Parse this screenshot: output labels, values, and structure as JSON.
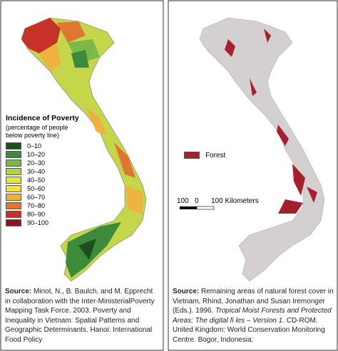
{
  "left_panel": {
    "legend": {
      "title": "Incidence of Poverty",
      "subtitle": "(percentage of people below poverty line)",
      "items": [
        {
          "label": "0–10",
          "color": "#1e4d1e"
        },
        {
          "label": "10–20",
          "color": "#3d8a3a"
        },
        {
          "label": "20–30",
          "color": "#7bb84b"
        },
        {
          "label": "30–40",
          "color": "#b3d14a"
        },
        {
          "label": "40–50",
          "color": "#dfe64b"
        },
        {
          "label": "50–60",
          "color": "#f4e14a"
        },
        {
          "label": "60–70",
          "color": "#efb23c"
        },
        {
          "label": "70–80",
          "color": "#df7631"
        },
        {
          "label": "80–90",
          "color": "#c73228"
        },
        {
          "label": "90–100",
          "color": "#8a1420"
        }
      ]
    },
    "source": {
      "label": "Source:",
      "text": "Minot, N., B. Baulch, and M. Epprecht in collaboration with the Inter-MinisterialPoverty Mapping Task Force. 2003. Poverty and Inequality in Vietnam: Spatial Patterns and Geographic Determinants. Hanoi: International Food Policy"
    }
  },
  "right_panel": {
    "legend": {
      "items": [
        {
          "label": "Forest",
          "color": "#a3202c"
        }
      ]
    },
    "scale_bar": {
      "labels": [
        "100",
        "0",
        "100 Kilometers"
      ]
    },
    "source": {
      "label": "Source:",
      "text": "Remaining areas of natural forest cover in Vietnam, Rhind, Jonathan and Susan Iremonger (Eds.). 1996.",
      "title": "Tropical Moist Forests and Protected Areas: The digital fi les – Version 1.",
      "text2": "CD-ROM. United Kingdom: World Conservation Monitoring Centre. Bogor, Indonesia:"
    }
  }
}
